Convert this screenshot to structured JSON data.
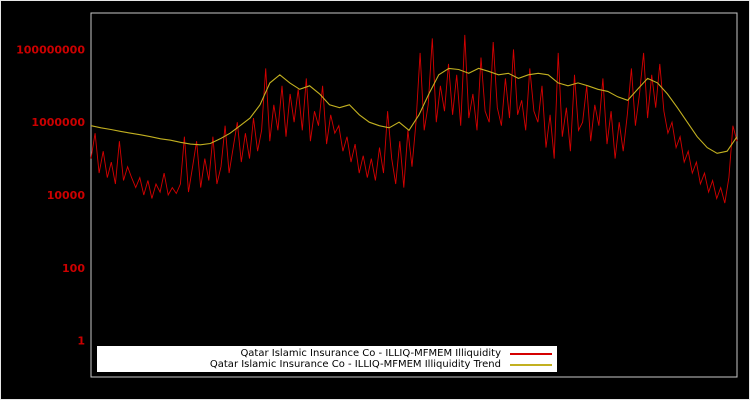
{
  "colors": {
    "background": "#000000",
    "plot_frame": "#c8c8c8",
    "tick_label": "#cc0000",
    "legend_background": "#ffffff",
    "legend_text": "#000000"
  },
  "chart_data": {
    "type": "line",
    "title": "",
    "xlabel": "",
    "ylabel": "",
    "x_axis_labels_visible": false,
    "y_scale": "log",
    "ylim": [
      0.1,
      1000000000
    ],
    "grid": false,
    "legend_position": "bottom-center",
    "yticks": [
      {
        "value": 1,
        "label": "1"
      },
      {
        "value": 100,
        "label": "100"
      },
      {
        "value": 10000,
        "label": "10000"
      },
      {
        "value": 1000000,
        "label": "1000000"
      },
      {
        "value": 100000000,
        "label": "100000000"
      }
    ],
    "series": [
      {
        "name": "Qatar Islamic Insurance Co - ILLIQ-MFMEM Illiquidity",
        "color": "#d40000",
        "values": [
          100000.0,
          500000.0,
          40000.0,
          160000.0,
          30000.0,
          80000.0,
          20000.0,
          300000.0,
          25000.0,
          60000.0,
          30000.0,
          16000.0,
          30000.0,
          10000.0,
          25000.0,
          8000.0,
          20000.0,
          12000.0,
          40000.0,
          10000.0,
          16000.0,
          11000.0,
          20000.0,
          400000.0,
          12000.0,
          60000.0,
          300000.0,
          16000.0,
          100000.0,
          25000.0,
          400000.0,
          20000.0,
          60000.0,
          800000.0,
          40000.0,
          200000.0,
          1000000.0,
          80000.0,
          500000.0,
          100000.0,
          1300000.0,
          160000.0,
          600000.0,
          30000000.0,
          300000.0,
          3000000.0,
          600000.0,
          10000000.0,
          400000.0,
          6000000.0,
          1000000.0,
          8000000.0,
          600000.0,
          16000000.0,
          300000.0,
          2000000.0,
          800000.0,
          10000000.0,
          250000.0,
          1600000.0,
          500000.0,
          800000.0,
          160000.0,
          400000.0,
          80000.0,
          250000.0,
          40000.0,
          120000.0,
          30000.0,
          100000.0,
          25000.0,
          200000.0,
          40000.0,
          2000000.0,
          100000.0,
          20000.0,
          300000.0,
          16000.0,
          600000.0,
          60000.0,
          1000000.0,
          80000000.0,
          600000.0,
          3000000.0,
          200000000.0,
          1000000.0,
          10000000.0,
          2000000.0,
          40000000.0,
          1600000.0,
          20000000.0,
          800000.0,
          250000000.0,
          1300000.0,
          6000000.0,
          600000.0,
          60000000.0,
          2000000.0,
          1000000.0,
          160000000.0,
          2500000.0,
          800000.0,
          16000000.0,
          1300000.0,
          100000000.0,
          1600000.0,
          4000000.0,
          600000.0,
          30000000.0,
          2000000.0,
          1000000.0,
          10000000.0,
          200000.0,
          1600000.0,
          100000.0,
          80000000.0,
          400000.0,
          2500000.0,
          160000.0,
          20000000.0,
          600000.0,
          1000000.0,
          10000000.0,
          300000.0,
          3000000.0,
          800000.0,
          16000000.0,
          250000.0,
          2000000.0,
          100000.0,
          1000000.0,
          160000.0,
          1600000.0,
          30000000.0,
          800000.0,
          6000000.0,
          80000000.0,
          1300000.0,
          20000000.0,
          2500000.0,
          40000000.0,
          2000000.0,
          500000.0,
          1000000.0,
          200000.0,
          400000.0,
          80000.0,
          160000.0,
          40000.0,
          80000.0,
          20000.0,
          40000.0,
          12000.0,
          25000.0,
          8000.0,
          16000.0,
          6000.0,
          30000.0,
          800000.0,
          300000.0
        ]
      },
      {
        "name": "Qatar Islamic Insurance Co - ILLIQ-MFMEM Illiquidity Trend",
        "color": "#c2b020",
        "values": [
          800000.0,
          700000.0,
          630000.0,
          560000.0,
          500000.0,
          450000.0,
          400000.0,
          350000.0,
          320000.0,
          280000.0,
          250000.0,
          240000.0,
          260000.0,
          350000.0,
          500000.0,
          800000.0,
          1300000.0,
          3000000.0,
          12000000.0,
          20000000.0,
          12000000.0,
          8000000.0,
          10000000.0,
          6000000.0,
          3000000.0,
          2500000.0,
          3000000.0,
          1600000.0,
          1000000.0,
          800000.0,
          700000.0,
          1000000.0,
          600000.0,
          1600000.0,
          6000000.0,
          20000000.0,
          30000000.0,
          28000000.0,
          22000000.0,
          30000000.0,
          25000000.0,
          20000000.0,
          22000000.0,
          16000000.0,
          20000000.0,
          22000000.0,
          20000000.0,
          12000000.0,
          10000000.0,
          12000000.0,
          10000000.0,
          8000000.0,
          7000000.0,
          5000000.0,
          4000000.0,
          8000000.0,
          16000000.0,
          12000000.0,
          6000000.0,
          2500000.0,
          1000000.0,
          400000.0,
          200000.0,
          140000.0,
          160000.0,
          400000.0
        ]
      }
    ]
  }
}
